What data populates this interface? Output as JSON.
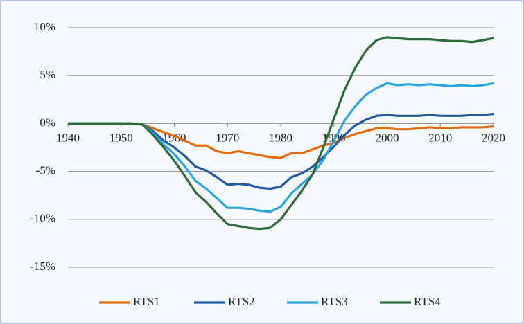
{
  "chart_data": {
    "type": "line",
    "x": [
      1940,
      1942,
      1944,
      1946,
      1948,
      1950,
      1952,
      1954,
      1956,
      1958,
      1960,
      1962,
      1964,
      1966,
      1968,
      1970,
      1972,
      1974,
      1976,
      1978,
      1980,
      1982,
      1984,
      1986,
      1988,
      1990,
      1992,
      1994,
      1996,
      1998,
      2000,
      2002,
      2004,
      2006,
      2008,
      2010,
      2012,
      2014,
      2016,
      2018,
      2020
    ],
    "xlim": [
      1940,
      2020
    ],
    "xticks": [
      1940,
      1950,
      1960,
      1970,
      1980,
      1990,
      2000,
      2010,
      2020
    ],
    "ylim": [
      -15,
      10
    ],
    "yticks": [
      {
        "value": 10,
        "label": "10%"
      },
      {
        "value": 5,
        "label": "5%"
      },
      {
        "value": 0,
        "label": "0%"
      },
      {
        "value": -5,
        "label": "-5%"
      },
      {
        "value": -10,
        "label": "-10%"
      },
      {
        "value": -15,
        "label": "-15%"
      }
    ],
    "grid": true,
    "legend": "bottom",
    "series": [
      {
        "name": "RTS1",
        "color": "#e46c0a",
        "values": [
          0,
          0,
          0,
          0,
          0,
          0,
          0,
          -0.1,
          -0.5,
          -0.9,
          -1.3,
          -1.8,
          -2.3,
          -2.3,
          -2.9,
          -3.1,
          -2.9,
          -3.1,
          -3.3,
          -3.5,
          -3.6,
          -3.1,
          -3.1,
          -2.7,
          -2.3,
          -2.0,
          -1.5,
          -1.1,
          -0.8,
          -0.5,
          -0.5,
          -0.6,
          -0.6,
          -0.5,
          -0.4,
          -0.5,
          -0.5,
          -0.4,
          -0.4,
          -0.4,
          -0.3
        ]
      },
      {
        "name": "RTS2",
        "color": "#1f5ca6",
        "values": [
          0,
          0,
          0,
          0,
          0,
          0,
          0,
          -0.1,
          -0.8,
          -1.8,
          -2.5,
          -3.4,
          -4.5,
          -4.9,
          -5.6,
          -6.4,
          -6.3,
          -6.4,
          -6.7,
          -6.8,
          -6.6,
          -5.6,
          -5.2,
          -4.5,
          -3.5,
          -2.4,
          -1.2,
          -0.2,
          0.4,
          0.8,
          0.9,
          0.8,
          0.8,
          0.8,
          0.9,
          0.8,
          0.8,
          0.8,
          0.9,
          0.9,
          1.0
        ]
      },
      {
        "name": "RTS3",
        "color": "#2ba6dd",
        "values": [
          0,
          0,
          0,
          0,
          0,
          0,
          0,
          -0.1,
          -1.0,
          -2.2,
          -3.2,
          -4.5,
          -6.0,
          -6.8,
          -7.8,
          -8.8,
          -8.8,
          -8.9,
          -9.1,
          -9.2,
          -8.7,
          -7.3,
          -6.3,
          -5.3,
          -3.8,
          -1.8,
          0.3,
          1.8,
          3.0,
          3.7,
          4.2,
          4.0,
          4.1,
          4.0,
          4.1,
          4.0,
          3.9,
          4.0,
          3.9,
          4.0,
          4.2
        ]
      },
      {
        "name": "RTS4",
        "color": "#2e6b3a",
        "values": [
          0,
          0,
          0,
          0,
          0,
          0,
          0,
          -0.1,
          -1.2,
          -2.5,
          -3.9,
          -5.5,
          -7.2,
          -8.2,
          -9.4,
          -10.5,
          -10.7,
          -10.9,
          -11.0,
          -10.9,
          -10.0,
          -8.5,
          -7.0,
          -5.3,
          -2.5,
          0.5,
          3.5,
          5.8,
          7.6,
          8.7,
          9.0,
          8.9,
          8.8,
          8.8,
          8.8,
          8.7,
          8.6,
          8.6,
          8.5,
          8.7,
          8.9
        ]
      }
    ]
  }
}
